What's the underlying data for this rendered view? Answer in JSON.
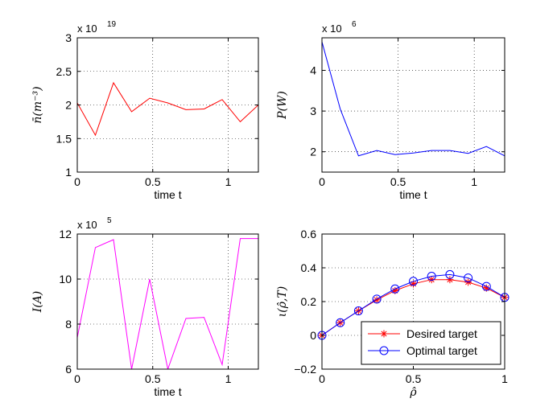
{
  "chart_data": [
    {
      "type": "line",
      "xlabel": "time t",
      "ylabel": "n̄(m⁻³)",
      "multiplier_base": "x 10",
      "multiplier_exp": "19",
      "xlim": [
        0,
        1.2
      ],
      "ylim": [
        1,
        3
      ],
      "xticks": [
        0,
        0.5,
        1
      ],
      "xtick_labels": [
        "0",
        "0.5",
        "1"
      ],
      "yticks": [
        1,
        1.5,
        2,
        2.5,
        3
      ],
      "ytick_labels": [
        "1",
        "1.5",
        "2",
        "2.5",
        "3"
      ],
      "grid": true,
      "series": [
        {
          "name": "n",
          "color": "#ff0000",
          "x": [
            0,
            0.12,
            0.24,
            0.36,
            0.48,
            0.6,
            0.72,
            0.84,
            0.96,
            1.08,
            1.2
          ],
          "y": [
            2.03,
            1.55,
            2.33,
            1.9,
            2.1,
            2.03,
            1.93,
            1.94,
            2.08,
            1.75,
            2.0
          ]
        }
      ]
    },
    {
      "type": "line",
      "xlabel": "time t",
      "ylabel": "P(W)",
      "multiplier_base": "x 10",
      "multiplier_exp": "6",
      "xlim": [
        0,
        1.2
      ],
      "ylim": [
        1.5,
        4.8
      ],
      "xticks": [
        0,
        0.5,
        1
      ],
      "xtick_labels": [
        "0",
        "0.5",
        "1"
      ],
      "yticks": [
        2,
        3,
        4
      ],
      "ytick_labels": [
        "2",
        "3",
        "4"
      ],
      "grid": true,
      "series": [
        {
          "name": "P",
          "color": "#0000ff",
          "x": [
            0,
            0.12,
            0.24,
            0.36,
            0.48,
            0.6,
            0.72,
            0.84,
            0.96,
            1.08,
            1.2
          ],
          "y": [
            4.7,
            3.05,
            1.9,
            2.03,
            1.93,
            1.97,
            2.03,
            2.03,
            1.96,
            2.13,
            1.9
          ]
        }
      ]
    },
    {
      "type": "line",
      "xlabel": "time t",
      "ylabel": "I(A)",
      "multiplier_base": "x 10",
      "multiplier_exp": "5",
      "xlim": [
        0,
        1.2
      ],
      "ylim": [
        6,
        12
      ],
      "xticks": [
        0,
        0.5,
        1
      ],
      "xtick_labels": [
        "0",
        "0.5",
        "1"
      ],
      "yticks": [
        6,
        8,
        10,
        12
      ],
      "ytick_labels": [
        "6",
        "8",
        "10",
        "12"
      ],
      "grid": true,
      "series": [
        {
          "name": "I",
          "color": "#ff00ff",
          "x": [
            0,
            0.12,
            0.24,
            0.36,
            0.48,
            0.6,
            0.72,
            0.84,
            0.96,
            1.08,
            1.2
          ],
          "y": [
            7.4,
            11.4,
            11.75,
            6.0,
            10.0,
            6.0,
            8.25,
            8.3,
            6.2,
            11.8,
            11.8
          ]
        }
      ]
    },
    {
      "type": "line",
      "xlabel": "ρ̂",
      "ylabel": "ι(ρ̂,T)",
      "multiplier_base": "",
      "multiplier_exp": "",
      "xlim": [
        0,
        1
      ],
      "ylim": [
        -0.2,
        0.6
      ],
      "xticks": [
        0,
        0.5,
        1
      ],
      "xtick_labels": [
        "0",
        "0.5",
        "1"
      ],
      "yticks": [
        -0.2,
        0,
        0.2,
        0.4,
        0.6
      ],
      "ytick_labels": [
        "−0.2",
        "0",
        "0.2",
        "0.4",
        "0.6"
      ],
      "grid": true,
      "legend": "bottom-right",
      "series": [
        {
          "name": "Desired target",
          "color": "#ff0000",
          "marker": "*",
          "x": [
            0,
            0.1,
            0.2,
            0.3,
            0.4,
            0.5,
            0.6,
            0.7,
            0.8,
            0.9,
            1.0
          ],
          "y": [
            0.0,
            0.075,
            0.145,
            0.21,
            0.265,
            0.305,
            0.33,
            0.33,
            0.315,
            0.28,
            0.225
          ]
        },
        {
          "name": "Optimal target",
          "color": "#0000ff",
          "marker": "o",
          "x": [
            0,
            0.1,
            0.2,
            0.3,
            0.4,
            0.5,
            0.6,
            0.7,
            0.8,
            0.9,
            1.0
          ],
          "y": [
            0.0,
            0.075,
            0.145,
            0.215,
            0.275,
            0.32,
            0.35,
            0.36,
            0.34,
            0.29,
            0.225
          ]
        }
      ]
    }
  ]
}
